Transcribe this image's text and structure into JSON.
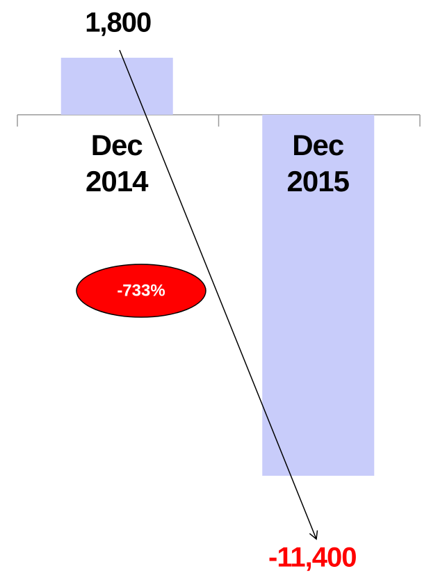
{
  "chart_data": {
    "type": "bar",
    "categories": [
      "Dec\n2014",
      "Dec\n2015"
    ],
    "values": [
      1800,
      -11400
    ],
    "value_labels": [
      "1,800",
      "-11,400"
    ],
    "value_label_colors": [
      "#000000",
      "#ff0000"
    ],
    "color": "#c8ccfa",
    "annotations": [
      {
        "text": "-733%"
      }
    ]
  }
}
